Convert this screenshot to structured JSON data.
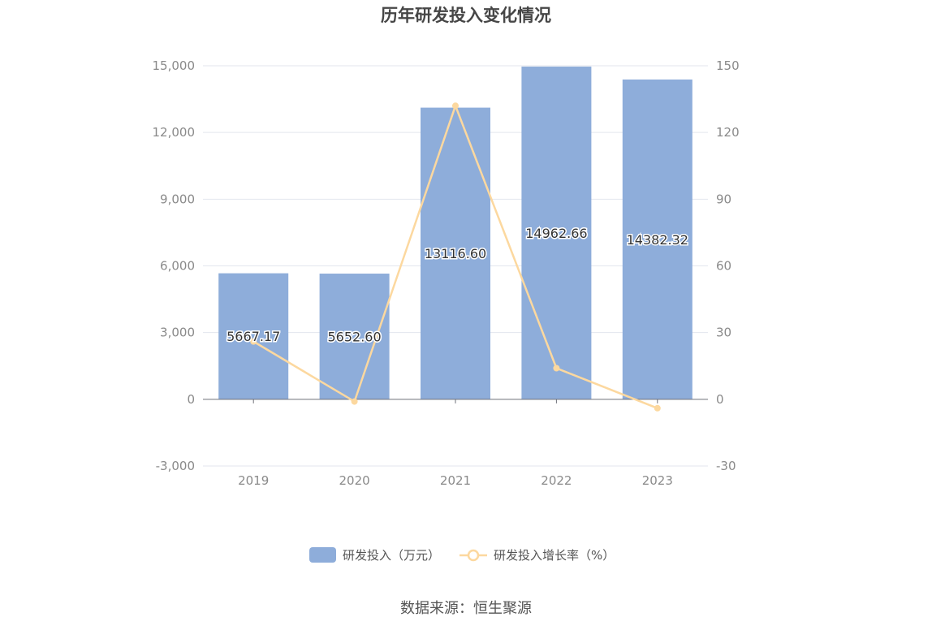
{
  "chart_data": {
    "type": "bar",
    "title": "历年研发投入变化情况",
    "categories": [
      "2019",
      "2020",
      "2021",
      "2022",
      "2023"
    ],
    "series": [
      {
        "name": "研发投入（万元）",
        "type": "bar",
        "axis": "left",
        "values": [
          5667.17,
          5652.6,
          13116.6,
          14962.66,
          14382.32
        ],
        "labels": [
          "5667.17",
          "5652.60",
          "13116.60",
          "14962.66",
          "14382.32"
        ],
        "color": "#8eadda"
      },
      {
        "name": "研发投入增长率（%）",
        "type": "line",
        "axis": "right",
        "values": [
          26,
          -1,
          132,
          14,
          -4
        ],
        "color": "#fcd89f"
      }
    ],
    "y_left": {
      "min": -3000,
      "max": 15000,
      "ticks": [
        -3000,
        0,
        3000,
        6000,
        9000,
        12000,
        15000
      ],
      "tick_labels": [
        "-3,000",
        "0",
        "3,000",
        "6,000",
        "9,000",
        "12,000",
        "15,000"
      ]
    },
    "y_right": {
      "min": -30,
      "max": 150,
      "ticks": [
        -30,
        0,
        30,
        60,
        90,
        120,
        150
      ],
      "tick_labels": [
        "-30",
        "0",
        "30",
        "60",
        "90",
        "120",
        "150"
      ]
    },
    "grid": true,
    "legend_position": "bottom"
  },
  "source": "数据来源：恒生聚源"
}
